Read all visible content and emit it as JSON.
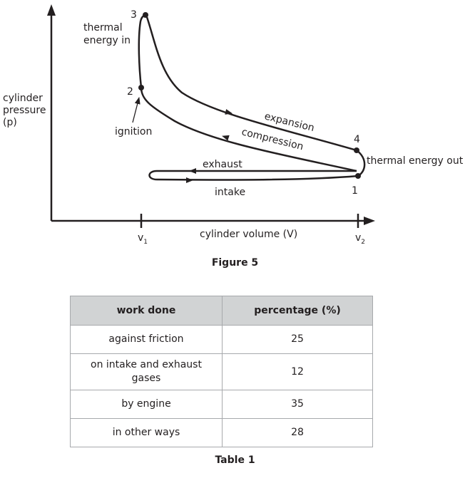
{
  "figure": {
    "y_axis_label": [
      "cylinder",
      "pressure",
      "(p)"
    ],
    "x_axis_label": "cylinder volume (V)",
    "tick_v1": "v",
    "tick_v1_sub": "1",
    "tick_v2": "v",
    "tick_v2_sub": "2",
    "point_labels": {
      "p1": "1",
      "p2": "2",
      "p3": "3",
      "p4": "4"
    },
    "annotations": {
      "thermal_in": [
        "thermal",
        "energy in"
      ],
      "ignition": "ignition",
      "expansion": "expansion",
      "compression": "compression",
      "exhaust": "exhaust",
      "intake": "intake",
      "thermal_out": "thermal energy out"
    },
    "caption": "Figure 5"
  },
  "table": {
    "headers": [
      "work done",
      "percentage (%)"
    ],
    "rows": [
      [
        "against friction",
        "25"
      ],
      [
        "on intake and exhaust gases",
        "12"
      ],
      [
        "by engine",
        "35"
      ],
      [
        "in other ways",
        "28"
      ]
    ],
    "caption": "Table 1"
  }
}
